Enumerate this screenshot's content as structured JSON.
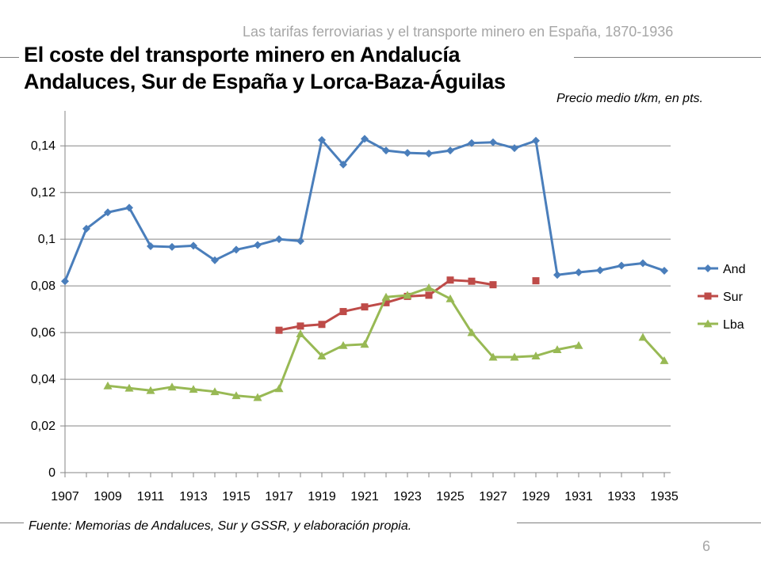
{
  "header": {
    "text": "Las tarifas ferroviarias y el transporte minero en España, 1870-1936"
  },
  "title": {
    "line1": "El coste del transporte minero en Andalucía",
    "line2": "Andaluces, Sur de España y Lorca-Baza-Águilas"
  },
  "subtitle": "Precio medio t/km, en pts.",
  "source": "Fuente: Memorias de  Andaluces, Sur y GSSR, y elaboración propia.",
  "page_number": "6",
  "colors": {
    "And": "#4a7ebb",
    "Sur": "#be4b48",
    "Lba": "#98b954",
    "axis": "#868686",
    "grid": "#868686"
  },
  "chart_data": {
    "type": "line",
    "title": "El coste del transporte minero en Andalucía",
    "xlabel": "",
    "ylabel": "Precio medio t/km, en pts.",
    "x": [
      1907,
      1908,
      1909,
      1910,
      1911,
      1912,
      1913,
      1914,
      1915,
      1916,
      1917,
      1918,
      1919,
      1920,
      1921,
      1922,
      1923,
      1924,
      1925,
      1926,
      1927,
      1928,
      1929,
      1930,
      1931,
      1932,
      1933,
      1934,
      1935
    ],
    "x_tick_labels": [
      "1907",
      "1909",
      "1911",
      "1913",
      "1915",
      "1917",
      "1919",
      "1921",
      "1923",
      "1925",
      "1927",
      "1929",
      "1931",
      "1933",
      "1935"
    ],
    "x_tick_values": [
      1907,
      1909,
      1911,
      1913,
      1915,
      1917,
      1919,
      1921,
      1923,
      1925,
      1927,
      1929,
      1931,
      1933,
      1935
    ],
    "ylim": [
      0,
      0.155
    ],
    "y_ticks": [
      0,
      0.02,
      0.04,
      0.06,
      0.08,
      0.1,
      0.12,
      0.14
    ],
    "y_tick_labels": [
      "0",
      "0,02",
      "0,04",
      "0,06",
      "0,08",
      "0,1",
      "0,12",
      "0,14"
    ],
    "grid": true,
    "legend_position": "right",
    "series": [
      {
        "name": "And",
        "marker": "diamond",
        "values": [
          0.082,
          0.1045,
          0.1115,
          0.1135,
          0.097,
          0.0967,
          0.0972,
          0.091,
          0.0955,
          0.0975,
          0.1,
          0.0992,
          0.1425,
          0.132,
          0.143,
          0.138,
          0.137,
          0.1367,
          0.138,
          0.1412,
          0.1415,
          0.139,
          0.1422,
          0.0847,
          0.0858,
          0.0867,
          0.0887,
          0.0897,
          0.0865
        ]
      },
      {
        "name": "Sur",
        "marker": "square",
        "values": [
          null,
          null,
          null,
          null,
          null,
          null,
          null,
          null,
          null,
          null,
          0.061,
          0.0628,
          0.0635,
          0.069,
          0.071,
          0.0728,
          0.0755,
          0.076,
          0.0825,
          0.082,
          0.0805,
          null,
          0.0822,
          null,
          null,
          null,
          null,
          null,
          null
        ]
      },
      {
        "name": "Lba",
        "marker": "triangle",
        "values": [
          null,
          null,
          0.0372,
          0.0362,
          0.0352,
          0.0367,
          0.0357,
          0.0347,
          0.033,
          0.0322,
          0.036,
          0.0595,
          0.05,
          0.0545,
          0.055,
          0.0752,
          0.076,
          0.0792,
          0.0745,
          0.06,
          0.0495,
          0.0495,
          0.05,
          0.0527,
          0.0545,
          null,
          null,
          0.058,
          0.048
        ]
      }
    ]
  }
}
